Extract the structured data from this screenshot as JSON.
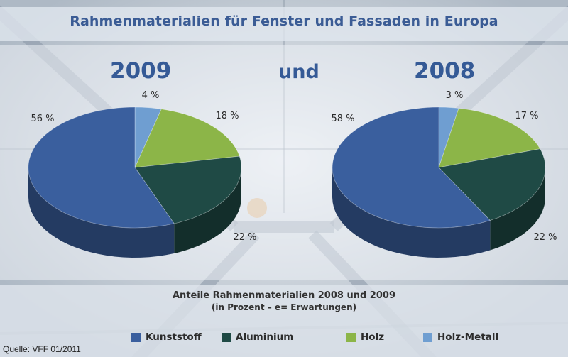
{
  "title": "Rahmenmaterialien für Fenster und Fassaden in Europa",
  "connector": "und",
  "caption_line1": "Anteile Rahmenmaterialien 2008 und 2009",
  "caption_line2": "(in Prozent – e= Erwartungen)",
  "source": "Quelle: VFF 01/2011",
  "chart_data": [
    {
      "type": "pie",
      "title": "2009",
      "categories": [
        "Kunststoff",
        "Aluminium",
        "Holz",
        "Holz-Metall"
      ],
      "values": [
        56,
        22,
        18,
        4
      ],
      "labels": [
        "56 %",
        "22 %",
        "18 %",
        "4 %"
      ],
      "colors": [
        "#3a5f9e",
        "#1f4a45",
        "#8cb548",
        "#6f9ed1"
      ]
    },
    {
      "type": "pie",
      "title": "2008",
      "categories": [
        "Kunststoff",
        "Aluminium",
        "Holz",
        "Holz-Metall"
      ],
      "values": [
        58,
        22,
        17,
        3
      ],
      "labels": [
        "58 %",
        "22 %",
        "17 %",
        "3 %"
      ],
      "colors": [
        "#3a5f9e",
        "#1f4a45",
        "#8cb548",
        "#6f9ed1"
      ]
    }
  ],
  "legend": [
    {
      "label": "Kunststoff",
      "color": "#3a5f9e"
    },
    {
      "label": "Aluminium",
      "color": "#1f4a45"
    },
    {
      "label": "Holz",
      "color": "#8cb548"
    },
    {
      "label": "Holz-Metall",
      "color": "#6f9ed1"
    }
  ]
}
